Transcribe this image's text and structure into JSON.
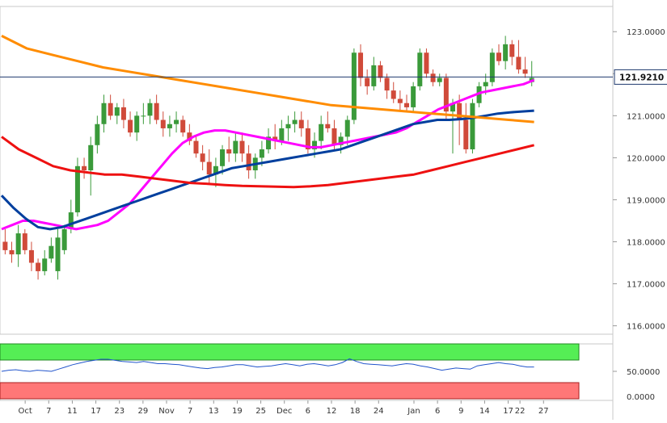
{
  "chart_data": [
    {
      "type": "candlestick",
      "instrument_current_price": "121.9210",
      "y_ticks": [
        "123.0000",
        "122.0000",
        "121.0000",
        "120.0000",
        "119.0000",
        "118.0000",
        "117.0000",
        "116.0000"
      ],
      "y_tick_values": [
        123,
        122,
        121,
        120,
        119,
        118,
        117,
        116
      ],
      "ylim": [
        115.8,
        123.6
      ],
      "x_labels": [
        "Oct",
        "7",
        "11",
        "17",
        "23",
        "29",
        "Nov",
        "7",
        "13",
        "19",
        "25",
        "Dec",
        "6",
        "12",
        "18",
        "24",
        "Jan",
        "6",
        "9",
        "14",
        "17",
        "22",
        "27"
      ],
      "x_label_index": [
        0,
        2,
        4,
        6,
        8,
        10,
        12,
        14,
        16,
        18,
        20,
        22,
        24,
        26,
        28,
        30,
        33,
        35,
        37,
        39,
        41,
        42,
        44
      ],
      "x_index_range": [
        -2,
        47
      ],
      "candles": [
        [
          118.0,
          118.3,
          117.7,
          117.8
        ],
        [
          117.8,
          118.0,
          117.5,
          117.7
        ],
        [
          117.7,
          118.4,
          117.4,
          118.2
        ],
        [
          118.2,
          118.3,
          117.7,
          117.8
        ],
        [
          117.8,
          118.0,
          117.3,
          117.5
        ],
        [
          117.5,
          117.6,
          117.1,
          117.3
        ],
        [
          117.3,
          117.8,
          117.2,
          117.6
        ],
        [
          117.6,
          118.1,
          117.5,
          117.9
        ],
        [
          117.3,
          118.3,
          117.1,
          118.1
        ],
        [
          117.8,
          118.4,
          117.7,
          118.3
        ],
        [
          118.3,
          119.0,
          118.2,
          118.7
        ],
        [
          118.7,
          120.0,
          118.6,
          119.8
        ],
        [
          119.8,
          120.0,
          119.5,
          119.7
        ],
        [
          119.7,
          120.5,
          119.1,
          120.3
        ],
        [
          120.3,
          121.0,
          120.1,
          120.8
        ],
        [
          120.8,
          121.5,
          120.6,
          121.3
        ],
        [
          121.3,
          121.5,
          120.9,
          121.0
        ],
        [
          121.0,
          121.3,
          120.8,
          121.2
        ],
        [
          121.2,
          121.4,
          120.7,
          120.9
        ],
        [
          120.9,
          121.1,
          120.5,
          120.6
        ],
        [
          120.6,
          121.1,
          120.4,
          121.0
        ],
        [
          121.0,
          121.3,
          120.8,
          121.0
        ],
        [
          121.0,
          121.4,
          120.8,
          121.3
        ],
        [
          121.3,
          121.5,
          120.8,
          120.9
        ],
        [
          120.9,
          121.1,
          120.5,
          120.7
        ],
        [
          120.7,
          121.0,
          120.5,
          120.8
        ],
        [
          120.8,
          121.1,
          120.6,
          120.9
        ],
        [
          120.9,
          121.0,
          120.5,
          120.6
        ],
        [
          120.6,
          120.8,
          120.3,
          120.4
        ],
        [
          120.4,
          120.5,
          120.0,
          120.1
        ],
        [
          120.1,
          120.3,
          119.7,
          119.9
        ],
        [
          119.9,
          120.2,
          119.4,
          119.6
        ],
        [
          119.6,
          120.0,
          119.3,
          119.8
        ],
        [
          119.8,
          120.3,
          119.6,
          120.2
        ],
        [
          120.2,
          120.5,
          119.9,
          120.1
        ],
        [
          120.1,
          120.6,
          119.9,
          120.4
        ],
        [
          120.4,
          120.6,
          119.9,
          120.1
        ],
        [
          120.1,
          120.3,
          119.5,
          119.7
        ],
        [
          119.7,
          120.1,
          119.5,
          120.0
        ],
        [
          120.0,
          120.4,
          119.8,
          120.2
        ],
        [
          120.2,
          120.7,
          120.1,
          120.5
        ],
        [
          120.5,
          120.8,
          120.2,
          120.4
        ],
        [
          120.4,
          120.9,
          120.3,
          120.7
        ],
        [
          120.7,
          121.0,
          120.4,
          120.8
        ],
        [
          120.8,
          121.1,
          120.6,
          120.9
        ],
        [
          120.9,
          121.1,
          120.5,
          120.7
        ],
        [
          120.7,
          120.9,
          120.1,
          120.2
        ],
        [
          120.2,
          120.6,
          120.0,
          120.4
        ],
        [
          120.4,
          121.0,
          120.2,
          120.8
        ],
        [
          120.8,
          121.1,
          120.6,
          120.7
        ],
        [
          120.7,
          120.9,
          120.2,
          120.3
        ],
        [
          120.3,
          120.6,
          120.1,
          120.5
        ],
        [
          120.5,
          121.0,
          120.3,
          120.9
        ],
        [
          120.9,
          122.6,
          120.8,
          122.5
        ],
        [
          122.5,
          122.7,
          121.7,
          121.9
        ],
        [
          121.9,
          122.1,
          121.5,
          121.7
        ],
        [
          121.7,
          122.4,
          121.6,
          122.2
        ],
        [
          122.2,
          122.3,
          121.8,
          121.9
        ],
        [
          121.9,
          122.0,
          121.4,
          121.6
        ],
        [
          121.6,
          121.8,
          121.3,
          121.4
        ],
        [
          121.4,
          121.6,
          121.1,
          121.3
        ],
        [
          121.3,
          121.5,
          121.1,
          121.2
        ],
        [
          121.2,
          121.8,
          121.1,
          121.7
        ],
        [
          121.7,
          122.6,
          121.6,
          122.5
        ],
        [
          122.5,
          122.6,
          121.9,
          122.0
        ],
        [
          122.0,
          122.1,
          121.7,
          121.8
        ],
        [
          121.8,
          122.0,
          121.7,
          121.9
        ],
        [
          121.9,
          122.0,
          120.9,
          121.1
        ],
        [
          121.1,
          121.4,
          120.1,
          121.3
        ],
        [
          121.3,
          121.5,
          120.3,
          120.9
        ],
        [
          120.9,
          121.3,
          120.1,
          120.2
        ],
        [
          120.2,
          121.4,
          120.1,
          121.3
        ],
        [
          121.3,
          121.8,
          121.2,
          121.7
        ],
        [
          121.7,
          122.0,
          121.5,
          121.8
        ],
        [
          121.8,
          122.6,
          121.7,
          122.5
        ],
        [
          122.5,
          122.7,
          122.2,
          122.3
        ],
        [
          122.3,
          122.9,
          122.1,
          122.7
        ],
        [
          122.7,
          122.8,
          122.2,
          122.4
        ],
        [
          122.4,
          122.8,
          122.0,
          122.1
        ],
        [
          122.1,
          122.4,
          121.9,
          122.0
        ],
        [
          121.8,
          122.3,
          121.7,
          121.9
        ]
      ],
      "ma_series": [
        {
          "color": "#ff00ff",
          "values": [
            118.3,
            118.4,
            118.5,
            118.5,
            118.45,
            118.4,
            118.35,
            118.3,
            118.35,
            118.4,
            118.5,
            118.7,
            118.9,
            119.2,
            119.5,
            119.8,
            120.1,
            120.35,
            120.5,
            120.6,
            120.65,
            120.65,
            120.6,
            120.55,
            120.5,
            120.45,
            120.4,
            120.35,
            120.3,
            120.25,
            120.25,
            120.3,
            120.35,
            120.4,
            120.45,
            120.5,
            120.55,
            120.6,
            120.7,
            120.85,
            121.0,
            121.15,
            121.25,
            121.35,
            121.45,
            121.55,
            121.6,
            121.65,
            121.7,
            121.75,
            121.85
          ]
        },
        {
          "color": "#003f9e",
          "values": [
            119.1,
            118.8,
            118.55,
            118.35,
            118.3,
            118.35,
            118.45,
            118.55,
            118.65,
            118.75,
            118.85,
            118.95,
            119.05,
            119.15,
            119.25,
            119.35,
            119.45,
            119.55,
            119.65,
            119.75,
            119.8,
            119.85,
            119.9,
            119.95,
            120.0,
            120.05,
            120.1,
            120.15,
            120.2,
            120.3,
            120.4,
            120.5,
            120.6,
            120.7,
            120.8,
            120.85,
            120.9,
            120.9,
            120.92,
            120.95,
            121.0,
            121.05,
            121.08,
            121.1,
            121.12
          ]
        },
        {
          "color": "#ee1111",
          "values": [
            120.5,
            120.2,
            120.0,
            119.8,
            119.7,
            119.65,
            119.6,
            119.6,
            119.55,
            119.5,
            119.45,
            119.4,
            119.38,
            119.35,
            119.33,
            119.32,
            119.31,
            119.3,
            119.32,
            119.35,
            119.4,
            119.45,
            119.5,
            119.55,
            119.6,
            119.7,
            119.8,
            119.9,
            120.0,
            120.1,
            120.2,
            120.3
          ]
        },
        {
          "color": "#ff8c00",
          "values": [
            122.9,
            122.6,
            122.45,
            122.3,
            122.15,
            122.05,
            121.95,
            121.85,
            121.75,
            121.65,
            121.55,
            121.45,
            121.35,
            121.25,
            121.2,
            121.15,
            121.1,
            121.05,
            121.0,
            120.95,
            120.9,
            120.85
          ]
        }
      ],
      "rsi": {
        "y_tick": "50.0000",
        "y_tick_bottom": "0.0000",
        "upper_color": "#55ee55",
        "lower_color": "#ff7777",
        "line_color": "#2255cc",
        "values": [
          50,
          52,
          53,
          51,
          50,
          52,
          51,
          50,
          54,
          58,
          62,
          65,
          68,
          70,
          72,
          72,
          70,
          68,
          67,
          66,
          68,
          66,
          64,
          64,
          63,
          62,
          60,
          58,
          56,
          55,
          57,
          58,
          60,
          62,
          62,
          60,
          58,
          59,
          60,
          62,
          64,
          62,
          60,
          63,
          64,
          62,
          60,
          62,
          66,
          73,
          68,
          64,
          63,
          62,
          61,
          60,
          62,
          64,
          63,
          60,
          58,
          55,
          52,
          54,
          56,
          55,
          54,
          60,
          62,
          64,
          66,
          64,
          63,
          60,
          58,
          58
        ]
      }
    }
  ]
}
